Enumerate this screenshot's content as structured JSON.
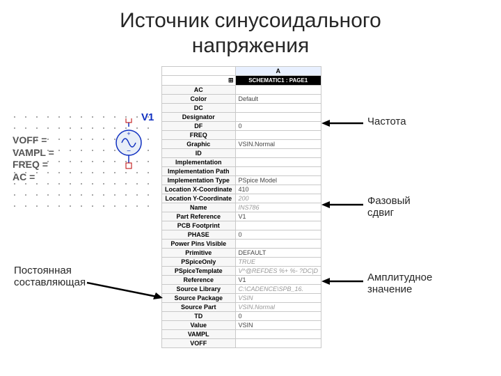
{
  "title_line1": "Источник синусоидального",
  "title_line2": "напряжения",
  "schematic": {
    "component_label": "V1",
    "params": [
      "VOFF =",
      "VAMPL =",
      "FREQ =",
      "AC ="
    ]
  },
  "table": {
    "col_header": "A",
    "sub_header": "SCHEMATIC1 : PAGE1",
    "rows": [
      {
        "label": "AC",
        "value": "",
        "grey": false
      },
      {
        "label": "Color",
        "value": "Default",
        "grey": false
      },
      {
        "label": "DC",
        "value": "",
        "grey": false
      },
      {
        "label": "Designator",
        "value": "",
        "grey": false
      },
      {
        "label": "DF",
        "value": "0",
        "grey": false
      },
      {
        "label": "FREQ",
        "value": "",
        "grey": false
      },
      {
        "label": "Graphic",
        "value": "VSIN.Normal",
        "grey": false
      },
      {
        "label": "ID",
        "value": "",
        "grey": false
      },
      {
        "label": "Implementation",
        "value": "",
        "grey": false
      },
      {
        "label": "Implementation Path",
        "value": "",
        "grey": false
      },
      {
        "label": "Implementation Type",
        "value": "PSpice Model",
        "grey": false
      },
      {
        "label": "Location X-Coordinate",
        "value": "410",
        "grey": false
      },
      {
        "label": "Location Y-Coordinate",
        "value": "200",
        "grey": true
      },
      {
        "label": "Name",
        "value": "INS786",
        "grey": true
      },
      {
        "label": "Part Reference",
        "value": "V1",
        "grey": false
      },
      {
        "label": "PCB Footprint",
        "value": "",
        "grey": false
      },
      {
        "label": "PHASE",
        "value": "0",
        "grey": false
      },
      {
        "label": "Power Pins Visible",
        "value": "",
        "grey": false
      },
      {
        "label": "Primitive",
        "value": "DEFAULT",
        "grey": false
      },
      {
        "label": "PSpiceOnly",
        "value": "TRUE",
        "grey": true
      },
      {
        "label": "PSpiceTemplate",
        "value": "V^@REFDES %+ %- ?DC|D",
        "grey": true
      },
      {
        "label": "Reference",
        "value": "V1",
        "grey": false
      },
      {
        "label": "Source Library",
        "value": "C:\\CADENCE\\SPB_16.",
        "grey": true
      },
      {
        "label": "Source Package",
        "value": "VSIN",
        "grey": true
      },
      {
        "label": "Source Part",
        "value": "VSIN.Normal",
        "grey": true
      },
      {
        "label": "TD",
        "value": "0",
        "grey": false
      },
      {
        "label": "Value",
        "value": "VSIN",
        "grey": false
      },
      {
        "label": "VAMPL",
        "value": "",
        "grey": false
      },
      {
        "label": "VOFF",
        "value": "",
        "grey": false
      }
    ]
  },
  "annotations": {
    "freq": "Частота",
    "phase": "Фазовый\nсдвиг",
    "dc": "Постоянная\nсоставляющая",
    "ampl": "Амплитудное\nзначение"
  },
  "colors": {
    "arrow": "#000000",
    "component_blue": "#1030c0",
    "text_grey": "#555555"
  }
}
